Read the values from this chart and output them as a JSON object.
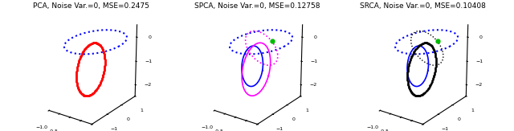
{
  "titles": [
    "PCA, Noise Var.=0, MSE=0.2475",
    "SPCA, Noise Var.=0, MSE=0.12758",
    "SRCA, Noise Var.=0, MSE=0.10408"
  ],
  "n_points": 200,
  "blue_color": "#0000ff",
  "red_color": "#ff0000",
  "magenta_color": "#ff00ff",
  "black_color": "#000000",
  "green_color": "#00bb00",
  "title_fontsize": 6.5,
  "tick_fontsize": 4.5,
  "figsize": [
    6.4,
    1.63
  ],
  "dpi": 100,
  "elev": 22,
  "azim": -55,
  "xlim": [
    -1,
    1
  ],
  "ylim": [
    -2,
    1
  ],
  "zlim": [
    -2.5,
    0.5
  ]
}
